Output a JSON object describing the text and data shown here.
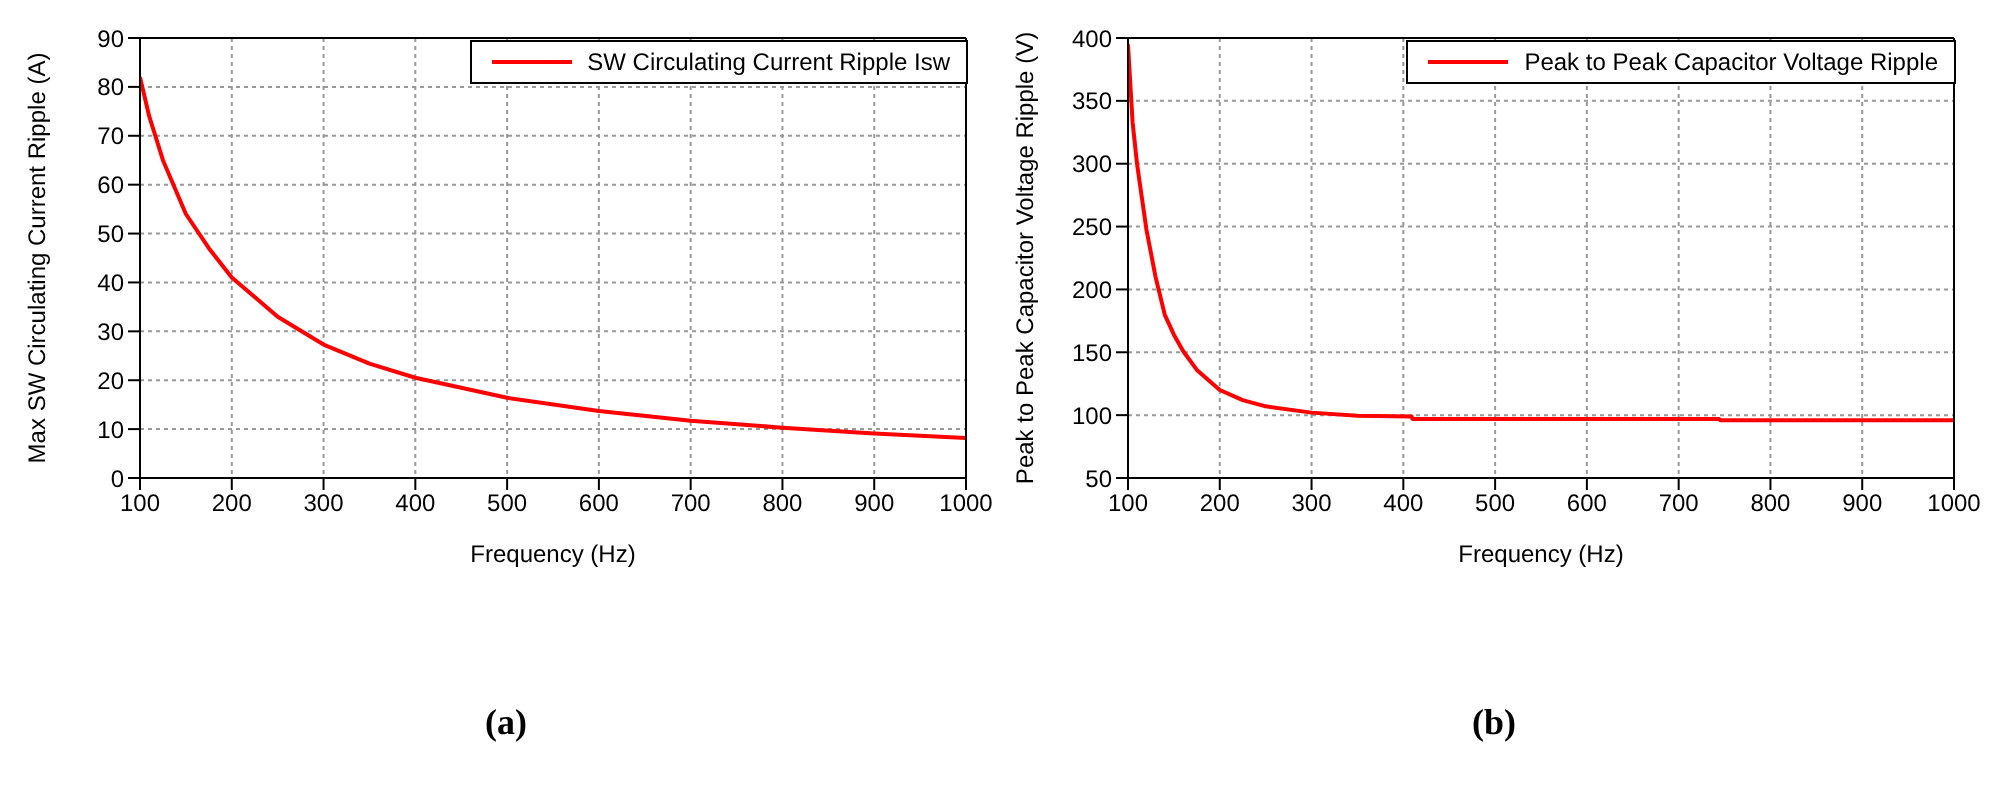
{
  "chart_data": [
    {
      "type": "line",
      "xlabel": "Frequency (Hz)",
      "ylabel": "Max SW Circulating Current Ripple (A)",
      "annotations": [
        "(a)"
      ],
      "xlim": [
        100,
        1000
      ],
      "xticks": [
        100,
        200,
        300,
        400,
        500,
        600,
        700,
        800,
        900,
        1000
      ],
      "ylim": [
        0,
        90
      ],
      "yticks": [
        0,
        10,
        20,
        30,
        40,
        50,
        60,
        70,
        80,
        90
      ],
      "grid": true,
      "legend": "top right",
      "line_style": "solid",
      "series": [
        {
          "name": "SW Circulating Current Ripple Isw",
          "color": "#ff0000",
          "x": [
            100,
            110,
            125,
            150,
            175,
            200,
            250,
            300,
            350,
            400,
            500,
            600,
            700,
            800,
            900,
            1000
          ],
          "values": [
            82,
            74,
            65,
            54,
            47,
            41,
            33,
            27.3,
            23.4,
            20.5,
            16.4,
            13.7,
            11.7,
            10.3,
            9.1,
            8.2
          ]
        }
      ]
    },
    {
      "type": "line",
      "xlabel": "Frequency (Hz)",
      "ylabel": "Peak to Peak Capacitor Voltage Ripple (V)",
      "annotations": [
        "(b)"
      ],
      "xlim": [
        100,
        1000
      ],
      "xticks": [
        100,
        200,
        300,
        400,
        500,
        600,
        700,
        800,
        900,
        1000
      ],
      "ylim": [
        50,
        400
      ],
      "yticks": [
        50,
        100,
        150,
        200,
        250,
        300,
        350,
        400
      ],
      "grid": true,
      "legend": "top right",
      "line_style": "solid",
      "series": [
        {
          "name": "Peak to Peak Capacitor Voltage Ripple",
          "color": "#ff0000",
          "x": [
            100,
            105,
            110,
            120,
            130,
            140,
            150,
            160,
            175,
            200,
            225,
            250,
            300,
            350,
            409,
            410,
            744,
            745,
            1000
          ],
          "values": [
            395,
            333,
            299,
            248,
            210,
            180,
            164,
            151,
            136,
            120,
            112,
            107,
            102,
            99.5,
            99,
            97,
            97,
            96,
            96
          ]
        }
      ]
    }
  ]
}
